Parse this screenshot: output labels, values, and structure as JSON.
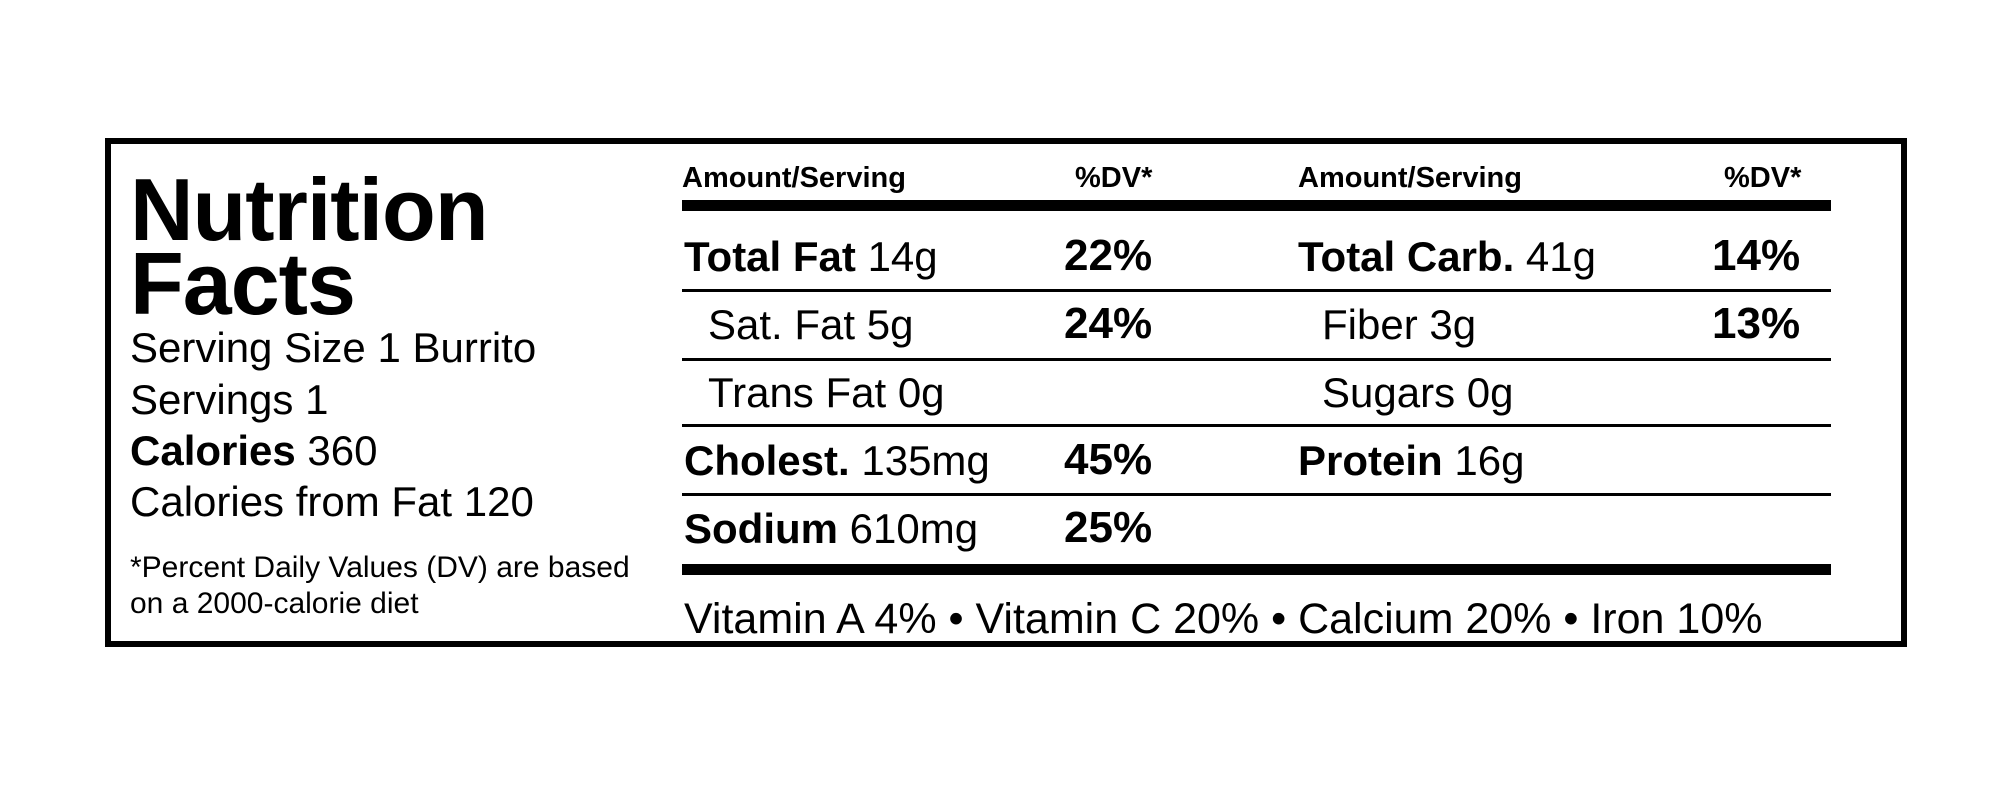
{
  "label": {
    "title_line1": "Nutrition",
    "title_line2": "Facts",
    "serving_size": "Serving Size 1 Burrito",
    "servings": "Servings 1",
    "calories_label": "Calories",
    "calories_value": "360",
    "calories_from_fat": "Calories from Fat 120",
    "footnote": "*Percent Daily Values (DV) are based on a 2000-calorie diet"
  },
  "headers": {
    "amount_left": "Amount/Serving",
    "dv_left": "%DV*",
    "amount_right": "Amount/Serving",
    "dv_right": "%DV*"
  },
  "left_rows": [
    {
      "name": "Total Fat",
      "amount": "14g",
      "dv": "22%"
    },
    {
      "name": "Sat. Fat 5g",
      "amount": "",
      "dv": "24%"
    },
    {
      "name": "Trans Fat 0g",
      "amount": "",
      "dv": ""
    },
    {
      "name": "Cholest.",
      "amount": "135mg",
      "dv": "45%"
    },
    {
      "name": "Sodium",
      "amount": "610mg",
      "dv": "25%"
    }
  ],
  "right_rows": [
    {
      "name": "Total Carb.",
      "amount": "41g",
      "dv": "14%"
    },
    {
      "name": "Fiber 3g",
      "amount": "",
      "dv": "13%"
    },
    {
      "name": "Sugars 0g",
      "amount": "",
      "dv": ""
    },
    {
      "name": "Protein",
      "amount": "16g",
      "dv": ""
    }
  ],
  "vitamins": "Vitamin A 4% • Vitamin C 20% • Calcium 20% • Iron 10%"
}
